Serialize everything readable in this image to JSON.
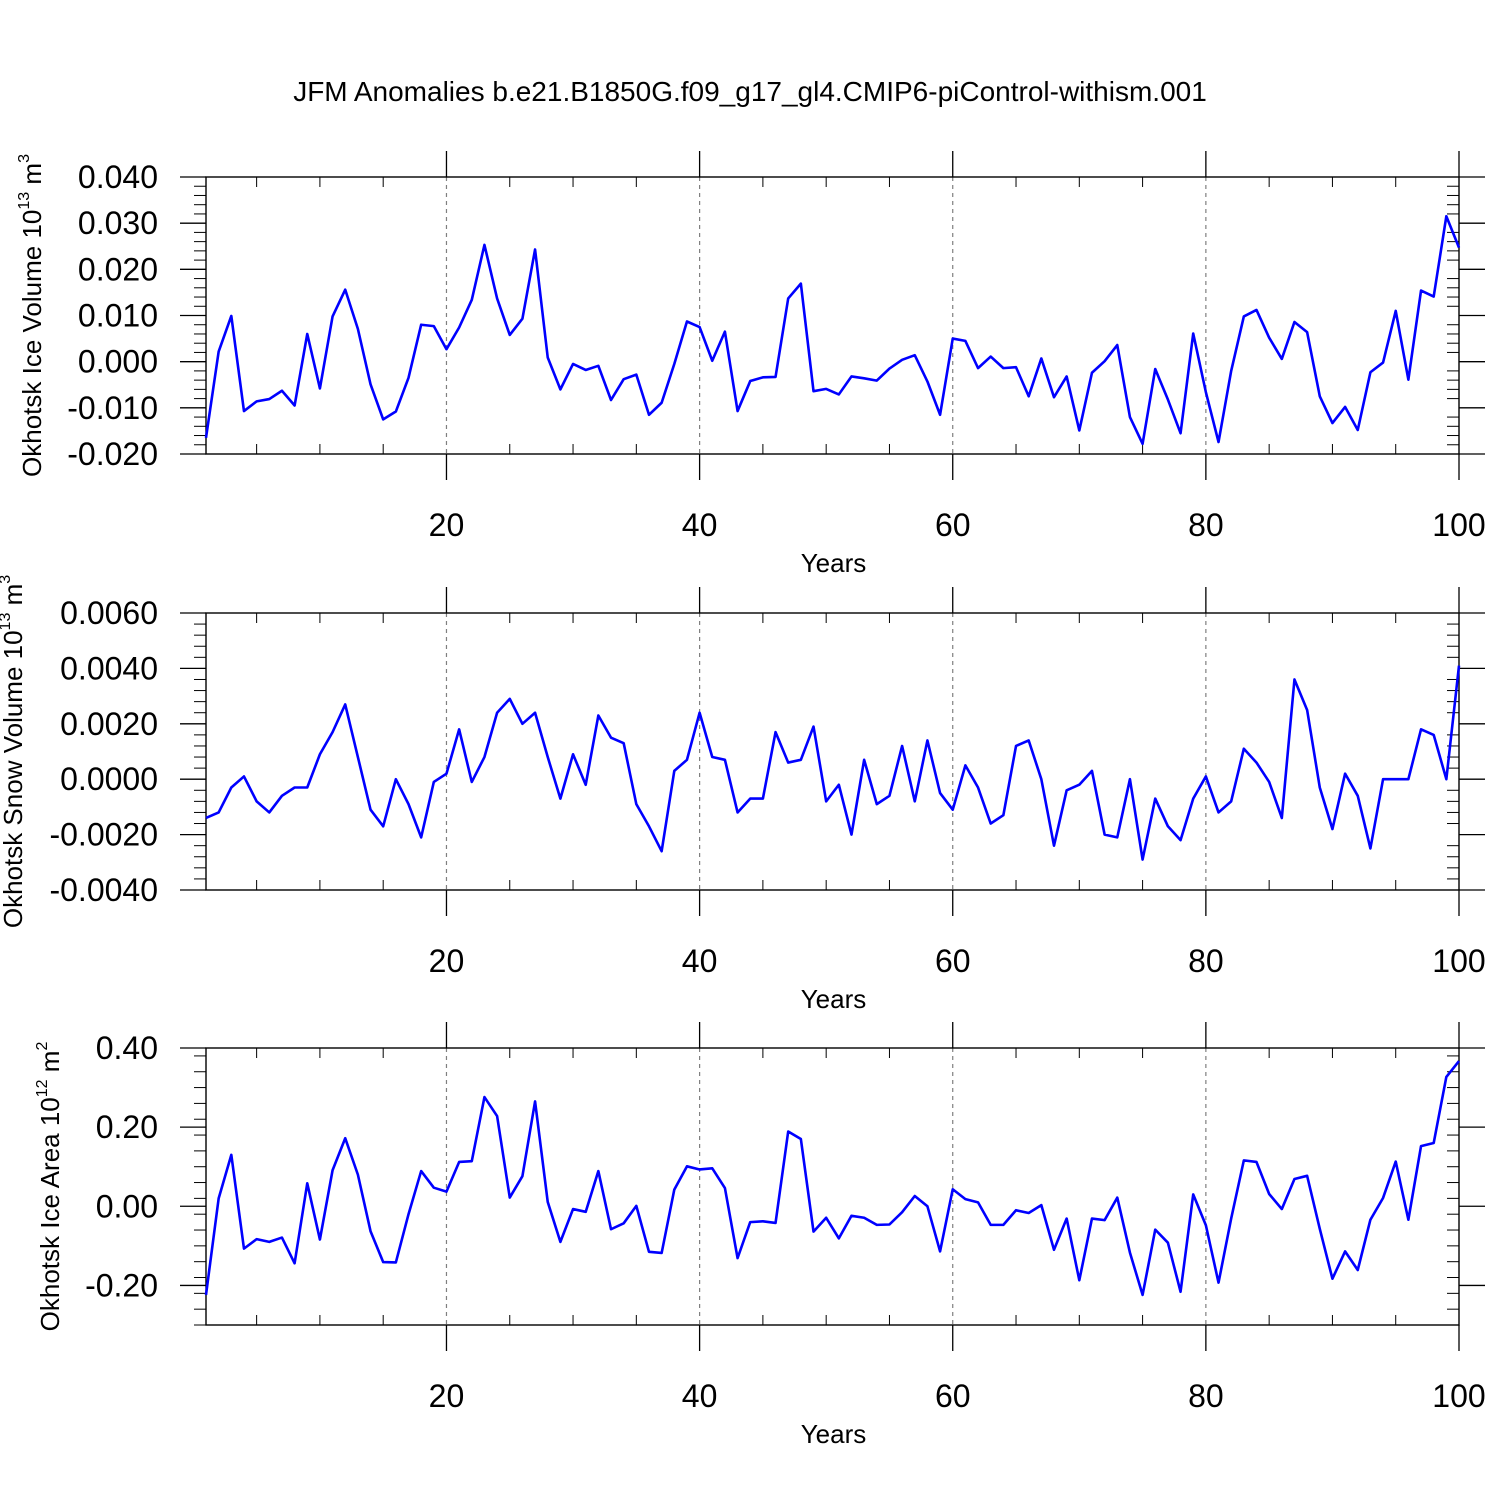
{
  "title": "JFM Anomalies b.e21.B1850G.f09_g17_gl4.CMIP6-piControl-withism.001",
  "line_color": "#0000ff",
  "chart_data": [
    {
      "type": "line",
      "ylabel": "Okhotsk Ice Volume 10",
      "ylabel_exp": "13",
      "ylabel_unit": "m",
      "ylabel_unit_exp": "3",
      "xlabel": "Years",
      "xlim": [
        1,
        100
      ],
      "ylim": [
        -0.02,
        0.04
      ],
      "xticks": [
        20,
        40,
        60,
        80,
        100
      ],
      "xtick_labels": [
        "20",
        "40",
        "60",
        "80",
        "100"
      ],
      "yticks": [
        -0.02,
        -0.01,
        0.0,
        0.01,
        0.02,
        0.03,
        0.04
      ],
      "ytick_labels": [
        "-0.020",
        "-0.010",
        "0.000",
        "0.010",
        "0.020",
        "0.030",
        "0.040"
      ],
      "grid": "vertical-dashed",
      "series": [
        {
          "values": [
            -0.0165,
            0.0022,
            0.0099,
            -0.0107,
            -0.0086,
            -0.0081,
            -0.0063,
            -0.0095,
            0.006,
            -0.0058,
            0.0098,
            0.0156,
            0.0071,
            -0.0049,
            -0.0125,
            -0.0108,
            -0.0035,
            0.008,
            0.0077,
            0.0027,
            0.0074,
            0.0134,
            0.0253,
            0.0137,
            0.0058,
            0.0093,
            0.0243,
            0.0009,
            -0.006,
            -0.0005,
            -0.0018,
            -0.0009,
            -0.0083,
            -0.0038,
            -0.0028,
            -0.0115,
            -0.0089,
            -0.0005,
            0.0087,
            0.0075,
            0.0002,
            0.0065,
            -0.0107,
            -0.0042,
            -0.0034,
            -0.0033,
            0.0137,
            0.0169,
            -0.0064,
            -0.0059,
            -0.0071,
            -0.0032,
            -0.0036,
            -0.0041,
            -0.0015,
            0.0004,
            0.0014,
            -0.0043,
            -0.0115,
            0.005,
            0.0045,
            -0.0014,
            0.0011,
            -0.0014,
            -0.0012,
            -0.0075,
            0.0007,
            -0.0077,
            -0.0032,
            -0.0149,
            -0.0024,
            0.0001,
            0.0036,
            -0.012,
            -0.0178,
            -0.0016,
            -0.0082,
            -0.0155,
            0.0061,
            -0.0066,
            -0.0174,
            -0.002,
            0.0098,
            0.0112,
            0.0052,
            0.0006,
            0.0086,
            0.0064,
            -0.0075,
            -0.0133,
            -0.0098,
            -0.0148,
            -0.0023,
            -0.0002,
            0.011,
            -0.0039,
            0.0154,
            0.0141,
            0.0315,
            0.0247
          ]
        }
      ]
    },
    {
      "type": "line",
      "ylabel": "Okhotsk Snow Volume 10",
      "ylabel_exp": "13",
      "ylabel_unit": "m",
      "ylabel_unit_exp": "3",
      "xlabel": "Years",
      "xlim": [
        1,
        100
      ],
      "ylim": [
        -0.004,
        0.006
      ],
      "xticks": [
        20,
        40,
        60,
        80,
        100
      ],
      "xtick_labels": [
        "20",
        "40",
        "60",
        "80",
        "100"
      ],
      "yticks": [
        -0.004,
        -0.002,
        0.0,
        0.002,
        0.004,
        0.006
      ],
      "ytick_labels": [
        "-0.0040",
        "-0.0020",
        "0.0000",
        "0.0020",
        "0.0040",
        "0.0060"
      ],
      "grid": "vertical-dashed",
      "series": [
        {
          "values": [
            -0.0014,
            -0.0012,
            -0.0003,
            0.0001,
            -0.0008,
            -0.0012,
            -0.0006,
            -0.0003,
            -0.0003,
            0.0009,
            0.0017,
            0.0027,
            0.0008,
            -0.0011,
            -0.0017,
            0.0,
            -0.0009,
            -0.0021,
            -0.0001,
            0.0002,
            0.0018,
            -0.0001,
            0.0008,
            0.0024,
            0.0029,
            0.002,
            0.0024,
            0.0008,
            -0.0007,
            0.0009,
            -0.0002,
            0.0023,
            0.0015,
            0.0013,
            -0.0009,
            -0.0017,
            -0.0026,
            0.0003,
            0.0007,
            0.0024,
            0.0008,
            0.0007,
            -0.0012,
            -0.0007,
            -0.0007,
            0.0017,
            0.0006,
            0.0007,
            0.0019,
            -0.0008,
            -0.0002,
            -0.002,
            0.0007,
            -0.0009,
            -0.0006,
            0.0012,
            -0.0008,
            0.0014,
            -0.0005,
            -0.0011,
            0.0005,
            -0.0003,
            -0.0016,
            -0.0013,
            0.0012,
            0.0014,
            0.0,
            -0.0024,
            -0.0004,
            -0.0002,
            0.0003,
            -0.002,
            -0.0021,
            0.0,
            -0.0029,
            -0.0007,
            -0.0017,
            -0.0022,
            -0.0007,
            0.0001,
            -0.0012,
            -0.0008,
            0.0011,
            0.0006,
            -0.0001,
            -0.0014,
            0.0036,
            0.0025,
            -0.0003,
            -0.0018,
            0.0002,
            -0.0006,
            -0.0025,
            0.0,
            0.0,
            0.0,
            0.0018,
            0.0016,
            0.0,
            0.0041
          ]
        }
      ]
    },
    {
      "type": "line",
      "ylabel": "Okhotsk Ice Area 10",
      "ylabel_exp": "12",
      "ylabel_unit": "m",
      "ylabel_unit_exp": "2",
      "xlabel": "Years",
      "xlim": [
        1,
        100
      ],
      "ylim": [
        -0.3,
        0.4
      ],
      "xticks": [
        20,
        40,
        60,
        80,
        100
      ],
      "xtick_labels": [
        "20",
        "40",
        "60",
        "80",
        "100"
      ],
      "yticks": [
        -0.2,
        0.0,
        0.2,
        0.4
      ],
      "ytick_labels": [
        "-0.20",
        "0.00",
        "0.20",
        "0.40"
      ],
      "grid": "vertical-dashed",
      "series": [
        {
          "values": [
            -0.224,
            0.02,
            0.13,
            -0.107,
            -0.083,
            -0.09,
            -0.079,
            -0.144,
            0.058,
            -0.084,
            0.091,
            0.172,
            0.08,
            -0.063,
            -0.141,
            -0.142,
            -0.02,
            0.089,
            0.047,
            0.037,
            0.112,
            0.114,
            0.276,
            0.228,
            0.022,
            0.076,
            0.265,
            0.011,
            -0.09,
            -0.007,
            -0.014,
            0.089,
            -0.058,
            -0.043,
            0.001,
            -0.115,
            -0.118,
            0.042,
            0.101,
            0.093,
            0.096,
            0.046,
            -0.131,
            -0.04,
            -0.038,
            -0.042,
            0.189,
            0.17,
            -0.064,
            -0.029,
            -0.081,
            -0.024,
            -0.029,
            -0.047,
            -0.046,
            -0.015,
            0.026,
            0.0,
            -0.114,
            0.043,
            0.018,
            0.01,
            -0.047,
            -0.047,
            -0.01,
            -0.017,
            0.003,
            -0.11,
            -0.031,
            -0.187,
            -0.031,
            -0.035,
            0.022,
            -0.117,
            -0.224,
            -0.059,
            -0.092,
            -0.216,
            0.03,
            -0.048,
            -0.193,
            -0.031,
            0.116,
            0.112,
            0.031,
            -0.007,
            0.069,
            0.077,
            -0.057,
            -0.183,
            -0.114,
            -0.161,
            -0.034,
            0.021,
            0.113,
            -0.034,
            0.152,
            0.16,
            0.327,
            0.367
          ]
        }
      ]
    }
  ]
}
